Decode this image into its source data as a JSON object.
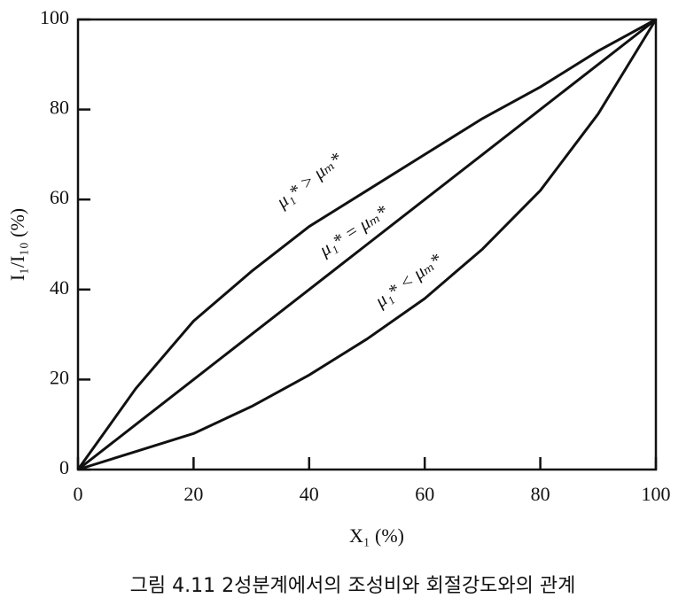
{
  "chart_data": {
    "type": "line",
    "x": [
      0,
      10,
      20,
      30,
      40,
      50,
      60,
      70,
      80,
      90,
      100
    ],
    "series": [
      {
        "color": "#111111",
        "values": [
          0,
          18,
          33,
          44,
          54,
          62,
          70,
          78,
          85,
          93,
          100
        ]
      },
      {
        "color": "#111111",
        "values": [
          0,
          10,
          20,
          30,
          40,
          50,
          60,
          70,
          80,
          90,
          100
        ]
      },
      {
        "color": "#111111",
        "values": [
          0,
          4,
          8,
          14,
          21,
          29,
          38,
          49,
          62,
          79,
          100
        ]
      }
    ],
    "annotations": [
      "μ₁* > μₘ*",
      "μ₁* = μₘ*",
      "μ₁* < μₘ*"
    ],
    "xlabel": "X₁ (%)",
    "ylabel": "I₁/I₁₀ (%)",
    "caption": "그림 4.11  2성분계에서의 조성비와 회절강도와의 관계",
    "xlim": [
      0,
      100
    ],
    "xticks": [
      0,
      20,
      40,
      60,
      80,
      100
    ],
    "ylim": [
      0,
      100
    ],
    "yticks": [
      0,
      20,
      40,
      60,
      80,
      100
    ],
    "grid": false
  }
}
